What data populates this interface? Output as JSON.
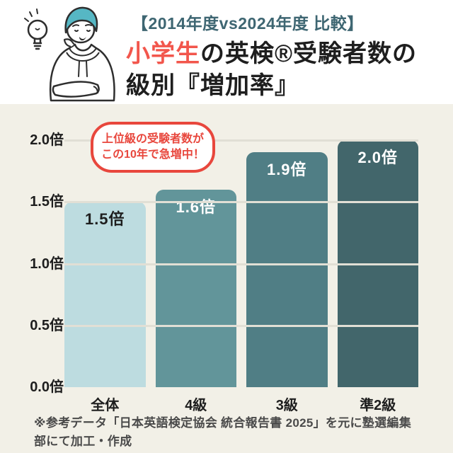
{
  "header": {
    "subtitle": "【2014年度vs2024年度 比較】",
    "title": {
      "highlight": "小学生",
      "rest_line1": "の英検®受験者数の",
      "line2": "級別『増加率』"
    },
    "illustration": "thinking-person-with-lightbulb"
  },
  "callout": {
    "line1": "上位級の受験者数が",
    "line2": "この10年で急増中！"
  },
  "chart_data": {
    "type": "bar",
    "title": "小学生の英検®受験者数の級別『増加率』",
    "subtitle": "【2014年度vs2024年度 比較】",
    "categories": [
      "全体",
      "4級",
      "3級",
      "準2級"
    ],
    "values": [
      1.5,
      1.6,
      1.9,
      2.0
    ],
    "value_labels": [
      "1.5倍",
      "1.6倍",
      "1.9倍",
      "2.0倍"
    ],
    "bar_colors": [
      "#bddce0",
      "#62959a",
      "#507e85",
      "#42666b"
    ],
    "value_label_colors": [
      "#1e1e1e",
      "#ffffff",
      "#ffffff",
      "#ffffff"
    ],
    "y_ticks": [
      {
        "label": "0.0倍",
        "value": 0.0
      },
      {
        "label": "0.5倍",
        "value": 0.5
      },
      {
        "label": "1.0倍",
        "value": 1.0
      },
      {
        "label": "1.5倍",
        "value": 1.5
      },
      {
        "label": "2.0倍",
        "value": 2.0
      }
    ],
    "ylim": [
      0.0,
      2.0
    ],
    "xlabel": "",
    "ylabel": "",
    "grid": true,
    "legend": false,
    "annotation": "上位級の受験者数がこの10年で急増中！"
  },
  "footer": {
    "note": "※参考データ「日本英語検定協会 統合報告書 2025」を元に塾選編集部にて加工・作成"
  },
  "colors": {
    "accent_red": "#e8473d",
    "title_red": "#f2564c",
    "subtitle_teal": "#3e6672",
    "text_dark": "#1e1e1e",
    "footer_gray": "#4a4a4a",
    "header_bg": "#ffffff",
    "chart_bg": "#f2f0e7",
    "gridline": "#e1dfd5",
    "hair_teal": "#56b7c4"
  }
}
